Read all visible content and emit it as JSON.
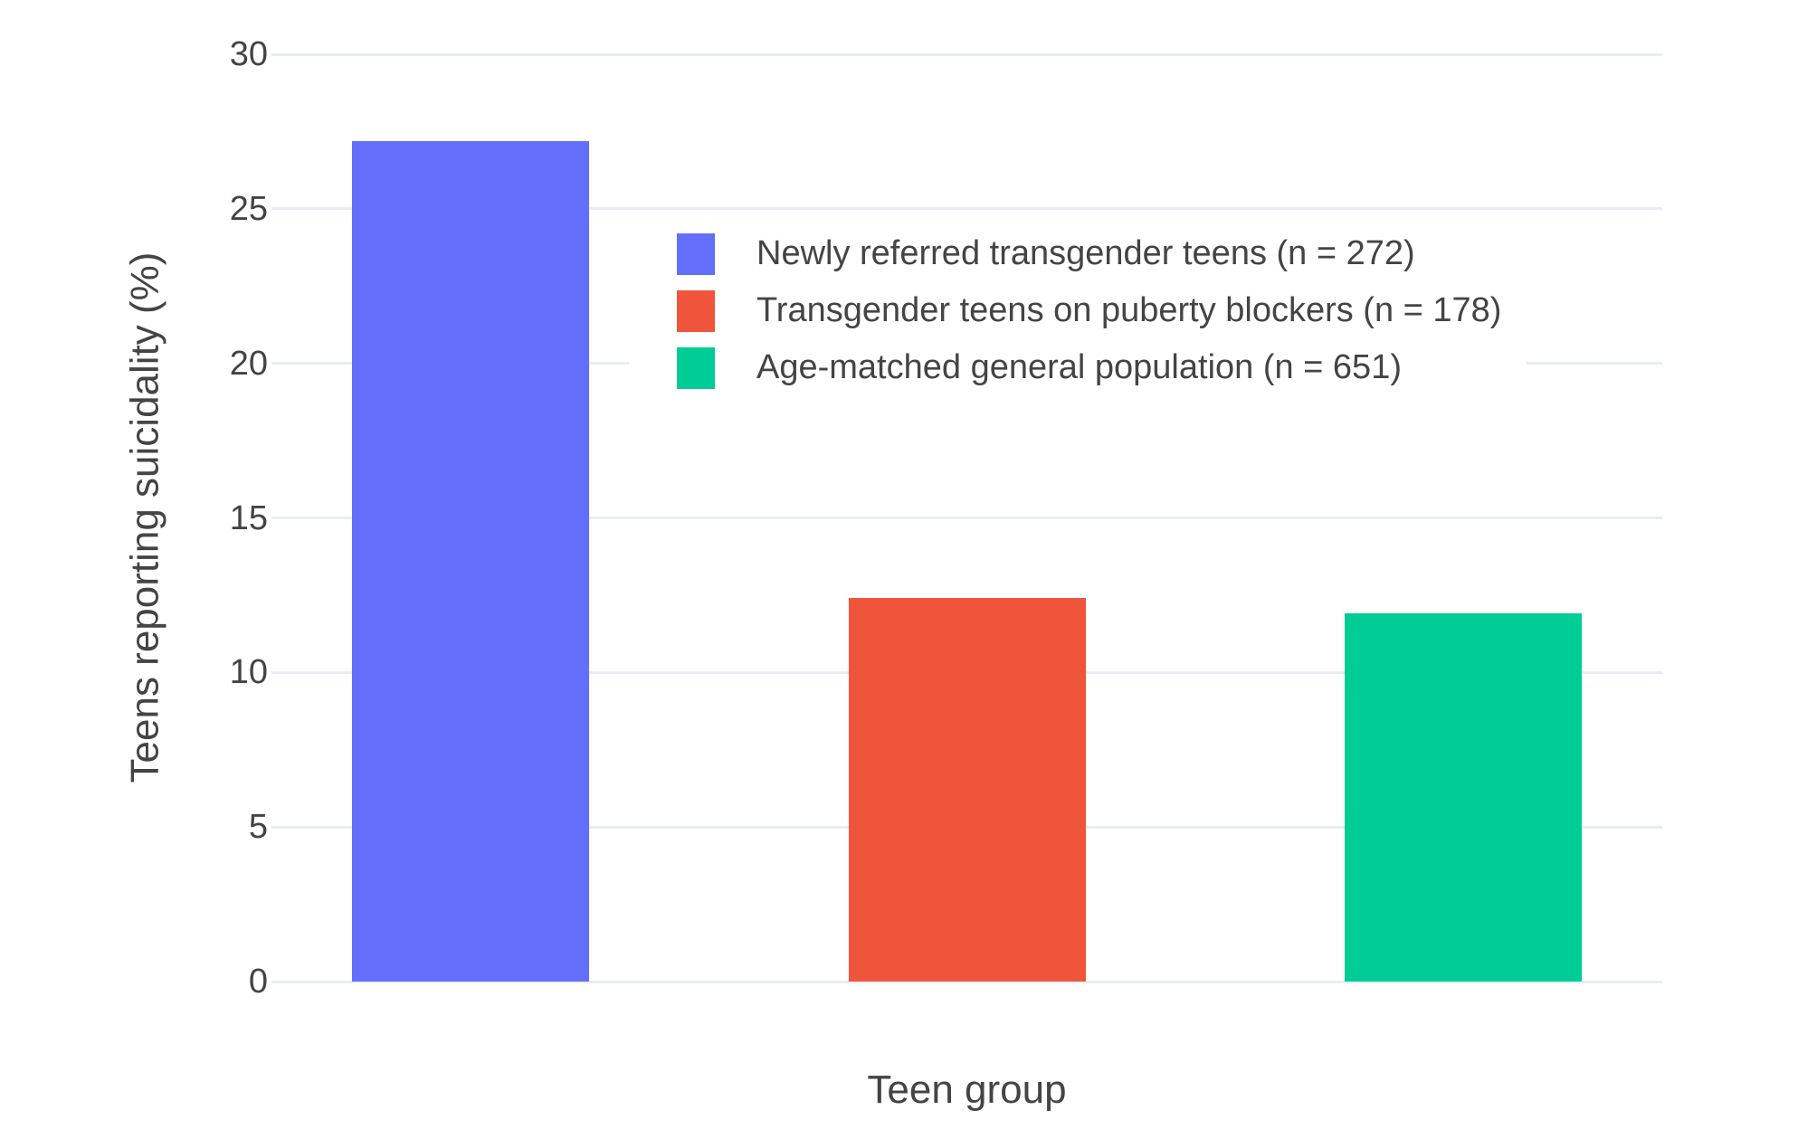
{
  "chart_data": {
    "type": "bar",
    "title": "",
    "xlabel": "Teen group",
    "ylabel": "Teens reporting suicidality (%)",
    "ylim": [
      0,
      30
    ],
    "yticks": [
      0,
      5,
      10,
      15,
      20,
      25,
      30
    ],
    "grid": true,
    "grid_axis": "y",
    "legend_position": "inside-top-center",
    "series": [
      {
        "name": "Newly referred transgender teens (n = 272)",
        "values": [
          27.2
        ],
        "color": "#636EFA"
      },
      {
        "name": "Transgender teens on puberty blockers (n = 178)",
        "values": [
          12.4
        ],
        "color": "#EF553B"
      },
      {
        "name": "Age-matched general population (n = 651)",
        "values": [
          11.9
        ],
        "color": "#00CC96"
      }
    ],
    "colors": {
      "background": "#FFFFFF",
      "grid": "#E8EDF5",
      "text": "#444444"
    }
  }
}
